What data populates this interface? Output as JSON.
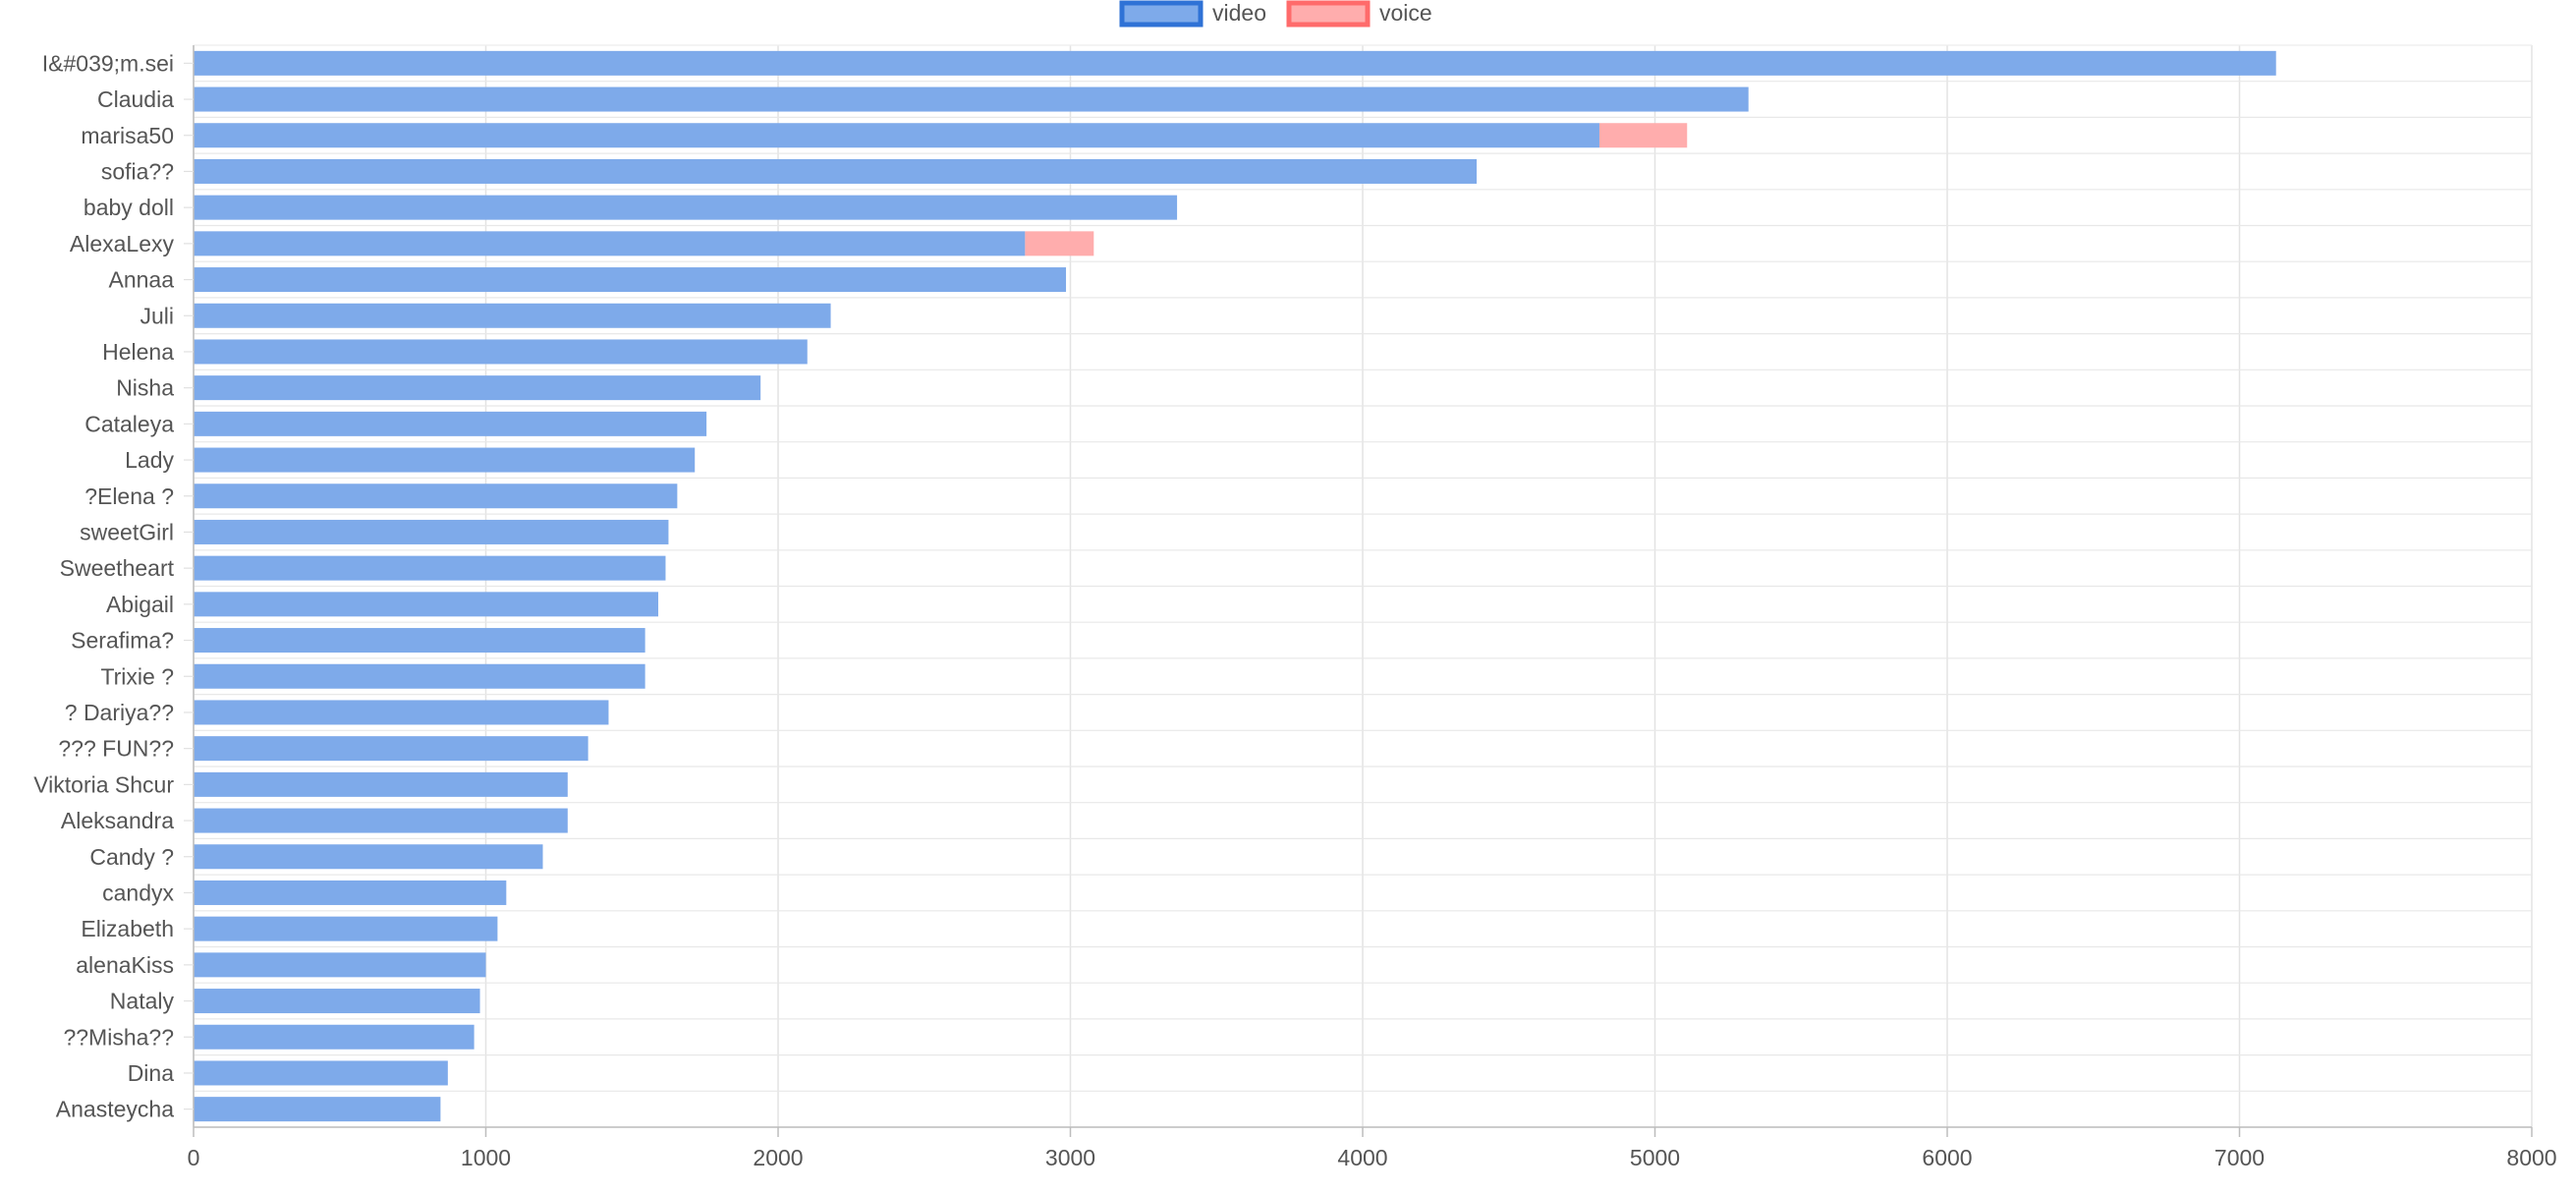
{
  "chart_data": {
    "type": "bar",
    "orientation": "horizontal",
    "stacked": true,
    "title": "",
    "xlabel": "",
    "ylabel": "",
    "xlim": [
      0,
      8000
    ],
    "x_ticks": [
      0,
      1000,
      2000,
      3000,
      4000,
      5000,
      6000,
      7000,
      8000
    ],
    "grid": true,
    "legend_position": "top-center",
    "categories": [
      "I&#039;m.sei",
      "Claudia",
      "marisa50",
      "sofia??",
      "baby doll",
      "AlexaLexy",
      "Annaa",
      "Juli",
      "Helena",
      "Nisha",
      "Cataleya",
      "Lady",
      "?Elena ?",
      "sweetGirl",
      "Sweetheart",
      "Abigail",
      "Serafima?",
      "Trixie ?",
      "? Dariya??",
      "??? FUN??",
      "Viktoria Shcur",
      "Aleksandra",
      "Candy ?",
      "candyx",
      "Elizabeth",
      "alenaKiss",
      "Nataly",
      "??Misha??",
      "Dina",
      "Anasteycha"
    ],
    "series": [
      {
        "name": "video",
        "color": "#7eaaea",
        "legend_border": "#2f72d6",
        "values": [
          7125,
          5320,
          4810,
          4390,
          3365,
          2845,
          2985,
          2180,
          2100,
          1940,
          1755,
          1715,
          1655,
          1625,
          1615,
          1590,
          1545,
          1545,
          1420,
          1350,
          1280,
          1280,
          1195,
          1070,
          1040,
          1000,
          980,
          960,
          870,
          845
        ]
      },
      {
        "name": "voice",
        "color": "#ffadad",
        "legend_border": "#ff6b6b",
        "values": [
          0,
          0,
          300,
          0,
          0,
          235,
          0,
          0,
          0,
          0,
          0,
          0,
          0,
          0,
          0,
          0,
          0,
          0,
          0,
          0,
          0,
          0,
          0,
          0,
          0,
          0,
          0,
          0,
          0,
          0
        ]
      }
    ]
  }
}
